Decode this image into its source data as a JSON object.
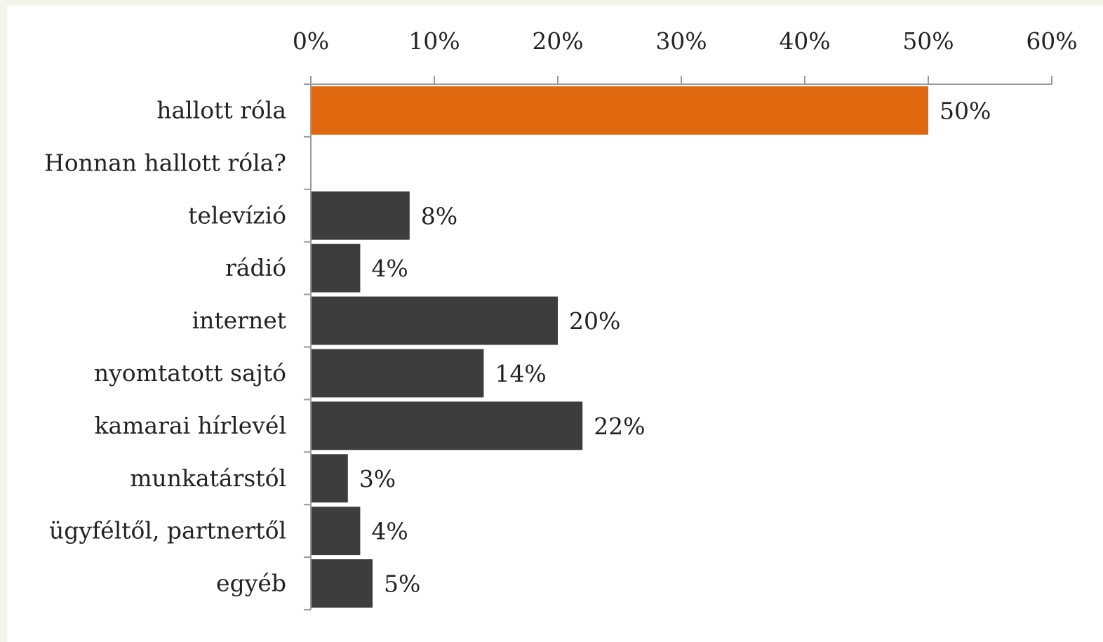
{
  "chart_data": {
    "type": "bar",
    "orientation": "horizontal",
    "categories": [
      "hallott róla",
      "Honnan hallott róla?",
      "televízió",
      "rádió",
      "internet",
      "nyomtatott sajtó",
      "kamarai hírlevél",
      "munkatárstól",
      "ügyféltől, partnertől",
      "egyéb"
    ],
    "values": [
      50,
      null,
      8,
      4,
      20,
      14,
      22,
      3,
      4,
      5
    ],
    "value_labels": [
      "50%",
      "",
      "8%",
      "4%",
      "20%",
      "14%",
      "22%",
      "3%",
      "4%",
      "5%"
    ],
    "xlim": [
      0,
      60
    ],
    "x_ticks": [
      0,
      10,
      20,
      30,
      40,
      50,
      60
    ],
    "x_tick_labels": [
      "0%",
      "10%",
      "20%",
      "30%",
      "40%",
      "50%",
      "60%"
    ],
    "x_axis_position": "top",
    "grid": false,
    "title": "",
    "xlabel": "",
    "ylabel": "",
    "colors": {
      "highlight": "#e0690f",
      "default": "#3d3d3d",
      "axis": "#9a9a9a",
      "background": "#f3f4ea"
    },
    "highlight_index": 0
  }
}
